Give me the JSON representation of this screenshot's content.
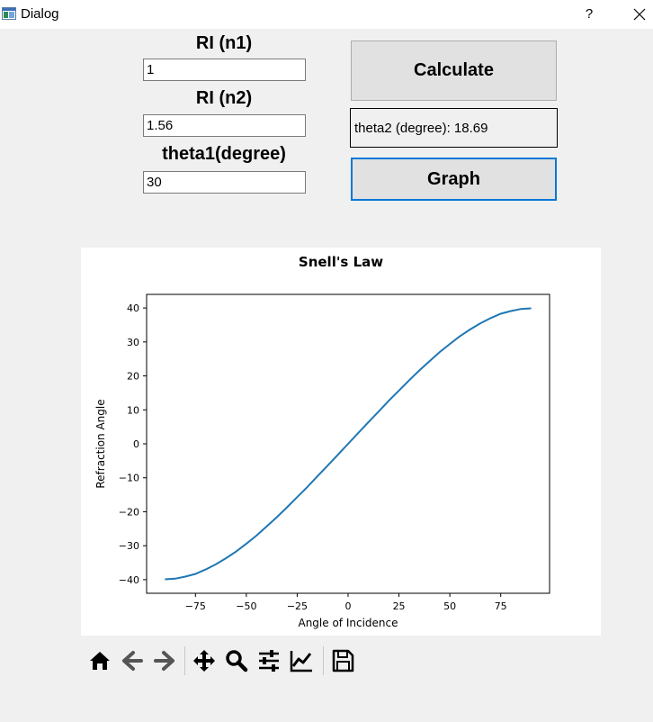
{
  "window": {
    "title": "Dialog",
    "help_label": "?",
    "icons": {
      "app": "app-window-icon",
      "close": "close-icon"
    }
  },
  "form": {
    "n1": {
      "label": "RI (n1)",
      "value": "1"
    },
    "n2": {
      "label": "RI (n2)",
      "value": "1.56"
    },
    "theta1": {
      "label": "theta1(degree)",
      "value": "30"
    },
    "calculate_label": "Calculate",
    "result_text": "theta2 (degree): 18.69",
    "graph_label": "Graph"
  },
  "chart_data": {
    "type": "line",
    "title": "Snell's Law",
    "xlabel": "Angle of Incidence",
    "ylabel": "Refraction Angle",
    "xlim": [
      -99,
      99
    ],
    "ylim": [
      -44,
      44
    ],
    "xticks": [
      -75,
      -50,
      -25,
      0,
      25,
      50,
      75
    ],
    "yticks": [
      -40,
      -30,
      -20,
      -10,
      0,
      10,
      20,
      30,
      40
    ],
    "series": [
      {
        "color": "#1f77b4",
        "x": [
          -90,
          -85,
          -80,
          -75,
          -70,
          -65,
          -60,
          -55,
          -50,
          -45,
          -40,
          -35,
          -30,
          -25,
          -20,
          -15,
          -10,
          -5,
          0,
          5,
          10,
          15,
          20,
          25,
          30,
          35,
          40,
          45,
          50,
          55,
          60,
          65,
          70,
          75,
          80,
          85,
          90
        ],
        "y": [
          -39.9,
          -39.7,
          -39.1,
          -38.3,
          -37.0,
          -35.5,
          -33.7,
          -31.7,
          -29.4,
          -27.0,
          -24.3,
          -21.6,
          -18.7,
          -15.7,
          -12.7,
          -9.5,
          -6.4,
          -3.2,
          0,
          3.2,
          6.4,
          9.5,
          12.7,
          15.7,
          18.7,
          21.6,
          24.3,
          27.0,
          29.4,
          31.7,
          33.7,
          35.5,
          37.0,
          38.3,
          39.1,
          39.7,
          39.9
        ]
      }
    ],
    "grid": false,
    "legend": "none"
  },
  "toolbar": {
    "icons": [
      "home-icon",
      "back-arrow-icon",
      "forward-arrow-icon",
      "pan-icon",
      "zoom-icon",
      "configure-subplots-icon",
      "edit-axis-icon",
      "save-icon"
    ]
  }
}
